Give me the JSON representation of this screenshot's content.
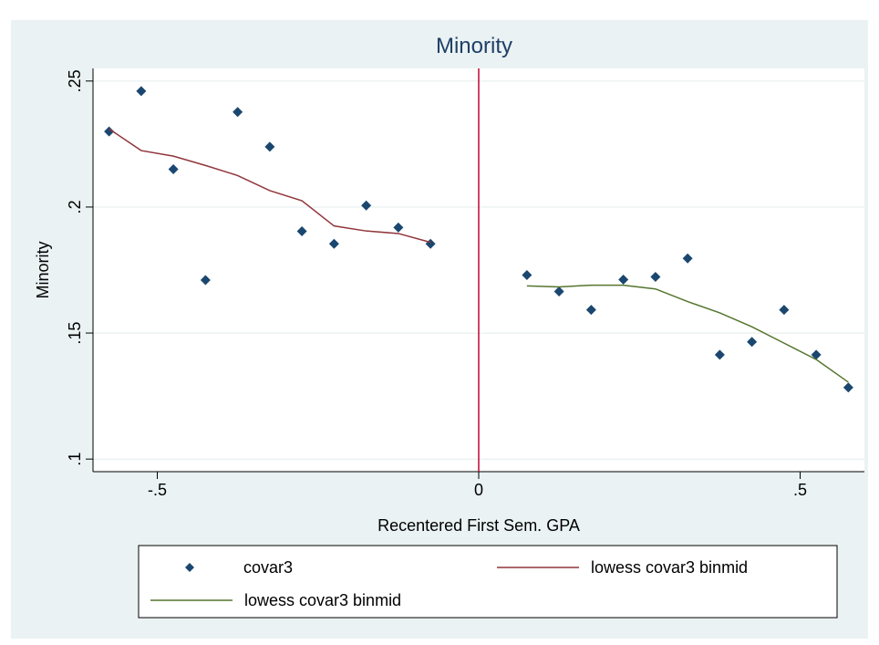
{
  "chart_data": {
    "type": "scatter",
    "title": "Minority",
    "x_label": "Recentered First Sem. GPA",
    "y_label": "Minority",
    "xlim": [
      -0.6,
      0.6
    ],
    "ylim": [
      0.095,
      0.255
    ],
    "xticks": [
      {
        "value": -0.5,
        "label": "-.5"
      },
      0,
      {
        "value": 0.5,
        "label": ".5"
      }
    ],
    "yticks": [
      {
        "value": 0.1,
        "label": ".1"
      },
      {
        "value": 0.15,
        "label": ".15"
      },
      {
        "value": 0.2,
        "label": ".2"
      },
      {
        "value": 0.25,
        "label": ".25"
      }
    ],
    "grid": true,
    "xline": 0,
    "xline_color": "#c10534",
    "series": [
      {
        "name": "covar3",
        "kind": "scatter",
        "color": "#1a476f",
        "x": [
          -0.575,
          -0.525,
          -0.475,
          -0.425,
          -0.375,
          -0.325,
          -0.275,
          -0.225,
          -0.175,
          -0.125,
          -0.075,
          0.075,
          0.125,
          0.175,
          0.225,
          0.275,
          0.325,
          0.375,
          0.425,
          0.475,
          0.525,
          0.575
        ],
        "values": [
          0.23,
          0.246,
          0.215,
          0.171,
          0.2377,
          0.2239,
          0.1904,
          0.1854,
          0.2006,
          0.1919,
          0.1854,
          0.173,
          0.1665,
          0.1592,
          0.1712,
          0.1723,
          0.1796,
          0.1414,
          0.1465,
          0.1592,
          0.1414,
          0.1284
        ]
      },
      {
        "name": "lowess covar3 binmid",
        "kind": "line",
        "color": "#90353b",
        "x": [
          -0.575,
          -0.525,
          -0.475,
          -0.425,
          -0.375,
          -0.325,
          -0.275,
          -0.225,
          -0.175,
          -0.125,
          -0.075
        ],
        "values": [
          0.231,
          0.2224,
          0.2202,
          0.2165,
          0.2125,
          0.2065,
          0.2025,
          0.1925,
          0.1905,
          0.1895,
          0.186
        ]
      },
      {
        "name": "lowess covar3 binmid",
        "kind": "line",
        "color": "#55752f",
        "x": [
          0.075,
          0.125,
          0.175,
          0.225,
          0.275,
          0.325,
          0.375,
          0.425,
          0.475,
          0.525,
          0.575
        ],
        "values": [
          0.1687,
          0.1683,
          0.169,
          0.169,
          0.1675,
          0.1625,
          0.158,
          0.1525,
          0.146,
          0.1395,
          0.1305
        ]
      }
    ]
  }
}
